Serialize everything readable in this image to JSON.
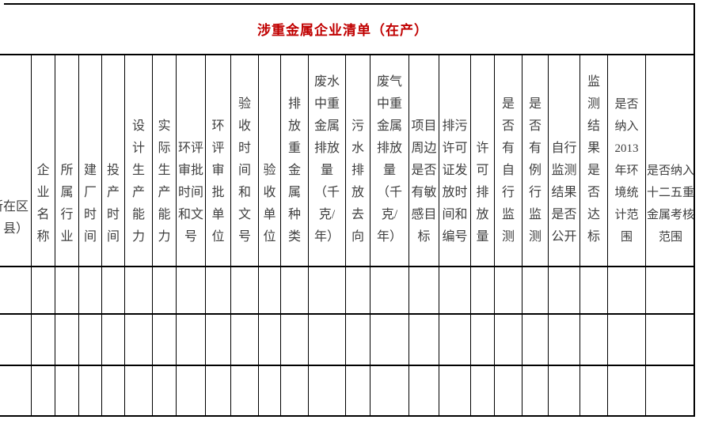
{
  "title": {
    "text": "涉重金属企业清单（在产）",
    "color": "#c00000"
  },
  "table": {
    "columns": [
      {
        "id": "district",
        "label": "所在区县）",
        "lines": [
          "所在区",
          "县）"
        ]
      },
      {
        "id": "enterprise-name",
        "label": "企业名称",
        "lines": [
          "企",
          "业",
          "名",
          "称"
        ]
      },
      {
        "id": "industry",
        "label": "所属行业",
        "lines": [
          "所",
          "属",
          "行",
          "业"
        ]
      },
      {
        "id": "build-time",
        "label": "建厂时间",
        "lines": [
          "建",
          "厂",
          "时",
          "间"
        ]
      },
      {
        "id": "production-start-time",
        "label": "投产时间",
        "lines": [
          "投",
          "产",
          "时",
          "间"
        ]
      },
      {
        "id": "designed-capacity",
        "label": "设计生产能力",
        "lines": [
          "设",
          "计",
          "生",
          "产",
          "能",
          "力"
        ]
      },
      {
        "id": "actual-capacity",
        "label": "实际生产能力",
        "lines": [
          "实",
          "际",
          "生",
          "产",
          "能",
          "力"
        ]
      },
      {
        "id": "eia-approval-time",
        "label": "环评审批时间和文号",
        "lines": [
          "环评",
          "审批",
          "时间",
          "和文",
          "号"
        ]
      },
      {
        "id": "eia-approval-unit",
        "label": "环评审批单位",
        "lines": [
          "环",
          "评",
          "审",
          "批",
          "单",
          "位"
        ]
      },
      {
        "id": "acceptance-time",
        "label": "验收时间和文号",
        "lines": [
          "验",
          "收",
          "时",
          "间",
          "和",
          "文",
          "号"
        ]
      },
      {
        "id": "acceptance-unit",
        "label": "验收单位",
        "lines": [
          "验",
          "收",
          "单",
          "位"
        ]
      },
      {
        "id": "heavy-metal-types",
        "label": "排放重金属种类",
        "lines": [
          "排",
          "放",
          "重",
          "金",
          "属",
          "种",
          "类"
        ]
      },
      {
        "id": "wastewater-discharge",
        "label": "废水中重金属排放量（千克/年）",
        "lines": [
          "废水",
          "中重",
          "金属",
          "排放",
          "量",
          "（千",
          "克/",
          "年）"
        ]
      },
      {
        "id": "sewage-destination",
        "label": "污水排放去向",
        "lines": [
          "污",
          "水",
          "排",
          "放",
          "去",
          "向"
        ]
      },
      {
        "id": "waste-gas-discharge",
        "label": "废气中重金属排放量（千克/年）",
        "lines": [
          "废气",
          "中重",
          "金属",
          "排放",
          "量",
          "（千",
          "克/",
          "年）"
        ]
      },
      {
        "id": "sensitive-targets",
        "label": "项目周边是否有敏感目标",
        "lines": [
          "项目",
          "周边",
          "是否",
          "有敏",
          "感目",
          "标"
        ]
      },
      {
        "id": "permit-time-number",
        "label": "排污许可证发放时间和编号",
        "lines": [
          "排污",
          "许可",
          "证发",
          "放时",
          "间和",
          "编号"
        ]
      },
      {
        "id": "permitted-discharge",
        "label": "许可排放量",
        "lines": [
          "许",
          "可",
          "排",
          "放",
          "量"
        ]
      },
      {
        "id": "self-monitoring",
        "label": "是否有自行监测",
        "lines": [
          "是",
          "否",
          "有",
          "自",
          "行",
          "监",
          "测"
        ]
      },
      {
        "id": "routine-monitoring",
        "label": "是否有例行监测",
        "lines": [
          "是",
          "否",
          "有",
          "例",
          "行",
          "监",
          "测"
        ]
      },
      {
        "id": "self-monitoring-public",
        "label": "自行监测结果是否公开",
        "lines": [
          "自行",
          "监测",
          "结果",
          "是否",
          "公开"
        ]
      },
      {
        "id": "monitoring-compliance",
        "label": "监测结果是否达标",
        "lines": [
          "监",
          "测",
          "结",
          "果",
          "是",
          "否",
          "达",
          "标"
        ]
      },
      {
        "id": "env-statistics-2013",
        "label": "是否纳入2013年环境统计范围",
        "lines": [
          "是否",
          "纳入",
          "2013",
          "年环",
          "境统",
          "计范",
          "围"
        ]
      },
      {
        "id": "fyp12-assessment",
        "label": "是否纳入十二五重金属考核范围",
        "lines": [
          "是否纳入",
          "十二五重",
          "金属考核",
          "范围"
        ]
      }
    ],
    "body_row_count": 3,
    "body_cells_empty": true
  }
}
